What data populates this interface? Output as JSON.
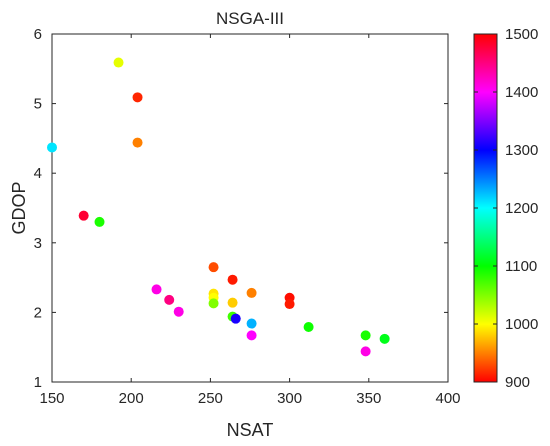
{
  "chart_data": {
    "type": "scatter",
    "title": "NSGA-III",
    "xlabel": "NSAT",
    "ylabel": "GDOP",
    "xlim": [
      150,
      400
    ],
    "ylim": [
      1,
      6
    ],
    "xticks": [
      "150",
      "200",
      "250",
      "300",
      "350",
      "400"
    ],
    "yticks": [
      "1",
      "2",
      "3",
      "4",
      "5",
      "6"
    ],
    "colorbar": {
      "range": [
        900,
        1500
      ],
      "ticks": [
        "900",
        "1000",
        "1100",
        "1200",
        "1300",
        "1400",
        "1500"
      ],
      "colormap": "hsv",
      "placement": "right"
    },
    "grid": false,
    "points": [
      {
        "x": 150,
        "y": 4.37,
        "c": 1210
      },
      {
        "x": 170,
        "y": 3.39,
        "c": 1480
      },
      {
        "x": 180,
        "y": 3.3,
        "c": 1090
      },
      {
        "x": 192,
        "y": 5.59,
        "c": 1010
      },
      {
        "x": 204,
        "y": 5.09,
        "c": 915
      },
      {
        "x": 204,
        "y": 4.44,
        "c": 950
      },
      {
        "x": 216,
        "y": 2.33,
        "c": 1410
      },
      {
        "x": 224,
        "y": 2.18,
        "c": 1450
      },
      {
        "x": 230,
        "y": 2.01,
        "c": 1410
      },
      {
        "x": 252,
        "y": 2.65,
        "c": 930
      },
      {
        "x": 252,
        "y": 2.27,
        "c": 990
      },
      {
        "x": 252,
        "y": 2.21,
        "c": 1000
      },
      {
        "x": 252,
        "y": 2.13,
        "c": 1050
      },
      {
        "x": 264,
        "y": 2.47,
        "c": 910
      },
      {
        "x": 264,
        "y": 2.14,
        "c": 980
      },
      {
        "x": 264,
        "y": 1.94,
        "c": 1075
      },
      {
        "x": 266,
        "y": 1.91,
        "c": 1310
      },
      {
        "x": 276,
        "y": 2.28,
        "c": 950
      },
      {
        "x": 276,
        "y": 1.84,
        "c": 1230
      },
      {
        "x": 276,
        "y": 1.67,
        "c": 1400
      },
      {
        "x": 300,
        "y": 2.21,
        "c": 905
      },
      {
        "x": 300,
        "y": 2.12,
        "c": 910
      },
      {
        "x": 312,
        "y": 1.79,
        "c": 1095
      },
      {
        "x": 348,
        "y": 1.67,
        "c": 1090
      },
      {
        "x": 348,
        "y": 1.44,
        "c": 1410
      },
      {
        "x": 360,
        "y": 1.62,
        "c": 1110
      }
    ]
  }
}
